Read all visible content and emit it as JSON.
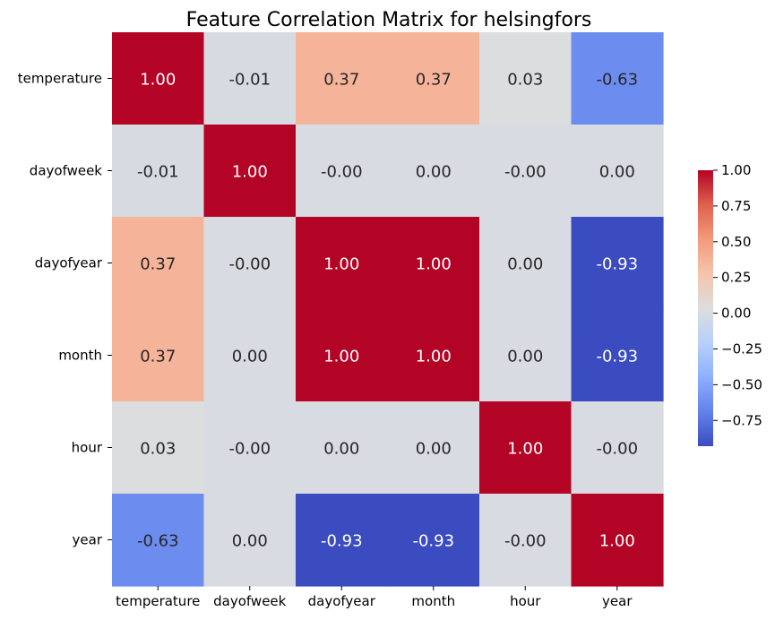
{
  "chart_data": {
    "type": "heatmap",
    "title": "Feature Correlation Matrix for helsingfors",
    "xlabel": "",
    "ylabel": "",
    "x_labels": [
      "temperature",
      "dayofweek",
      "dayofyear",
      "month",
      "hour",
      "year"
    ],
    "y_labels": [
      "temperature",
      "dayofweek",
      "dayofyear",
      "month",
      "hour",
      "year"
    ],
    "values": [
      [
        1.0,
        -0.01,
        0.37,
        0.37,
        0.03,
        -0.63
      ],
      [
        -0.01,
        1.0,
        -0.0,
        0.0,
        -0.0,
        0.0
      ],
      [
        0.37,
        -0.0,
        1.0,
        1.0,
        0.0,
        -0.93
      ],
      [
        0.37,
        0.0,
        1.0,
        1.0,
        0.0,
        -0.93
      ],
      [
        0.03,
        -0.0,
        0.0,
        0.0,
        1.0,
        -0.0
      ],
      [
        -0.63,
        0.0,
        -0.93,
        -0.93,
        -0.0,
        1.0
      ]
    ],
    "cell_labels": [
      [
        "1.00",
        "-0.01",
        "0.37",
        "0.37",
        "0.03",
        "-0.63"
      ],
      [
        "-0.01",
        "1.00",
        "-0.00",
        "0.00",
        "-0.00",
        "0.00"
      ],
      [
        "0.37",
        "-0.00",
        "1.00",
        "1.00",
        "0.00",
        "-0.93"
      ],
      [
        "0.37",
        "0.00",
        "1.00",
        "1.00",
        "0.00",
        "-0.93"
      ],
      [
        "0.03",
        "-0.00",
        "0.00",
        "0.00",
        "1.00",
        "-0.00"
      ],
      [
        "-0.63",
        "0.00",
        "-0.93",
        "-0.93",
        "-0.00",
        "1.00"
      ]
    ],
    "colormap": "coolwarm",
    "color_range": [
      -0.93,
      1.0
    ],
    "colorbar_ticks": [
      "1.00",
      "0.75",
      "0.50",
      "0.25",
      "0.00",
      "−0.25",
      "−0.50",
      "−0.75"
    ],
    "colorbar_tick_values": [
      1.0,
      0.75,
      0.5,
      0.25,
      0.0,
      -0.25,
      -0.5,
      -0.75
    ],
    "legend": "right",
    "grid": false
  }
}
